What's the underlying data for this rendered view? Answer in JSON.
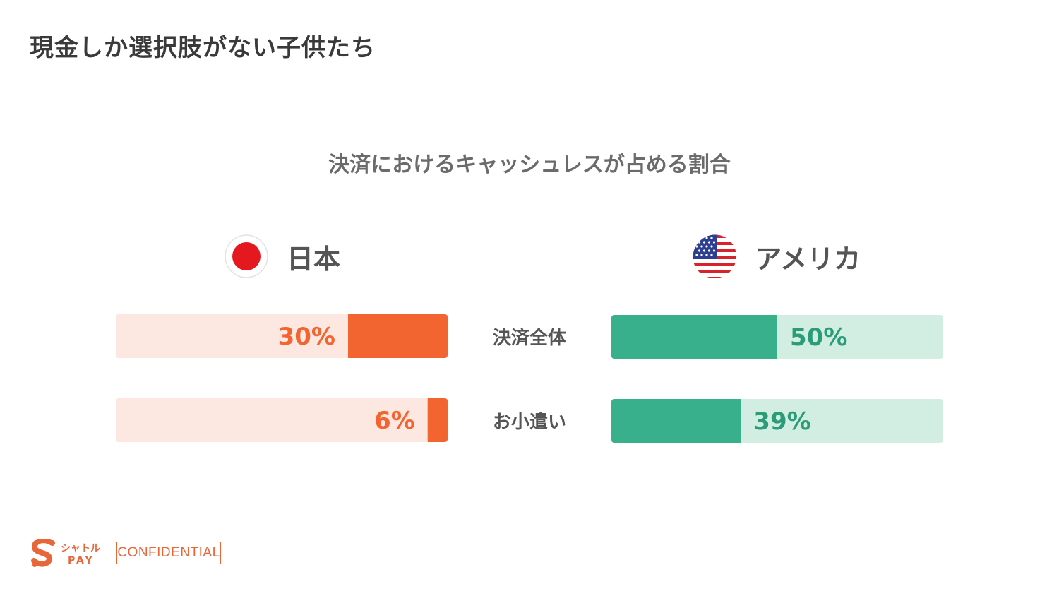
{
  "page": {
    "title": "現金しか選択肢がない子供たち"
  },
  "chart_data": {
    "type": "bar",
    "title": "決済におけるキャッシュレスが占める割合",
    "categories": [
      "決済全体",
      "お小遣い"
    ],
    "series": [
      {
        "name": "日本",
        "values": [
          30,
          6
        ],
        "labels": [
          "30%",
          "6%"
        ],
        "color": "#f26531",
        "track_color": "#fde8e1",
        "flag": "japan-flag-icon"
      },
      {
        "name": "アメリカ",
        "values": [
          50,
          39
        ],
        "labels": [
          "50%",
          "39%"
        ],
        "color": "#38b08b",
        "track_color": "#d2ede2",
        "flag": "usa-flag-icon"
      }
    ],
    "ylim": [
      0,
      100
    ],
    "xlabel": "",
    "ylabel": "",
    "legend": "top"
  },
  "footer": {
    "logo_text_top": "シャトル",
    "logo_text_bottom": "PAY",
    "confidential": "CONFIDENTIAL",
    "brand_color": "#e8673a"
  }
}
